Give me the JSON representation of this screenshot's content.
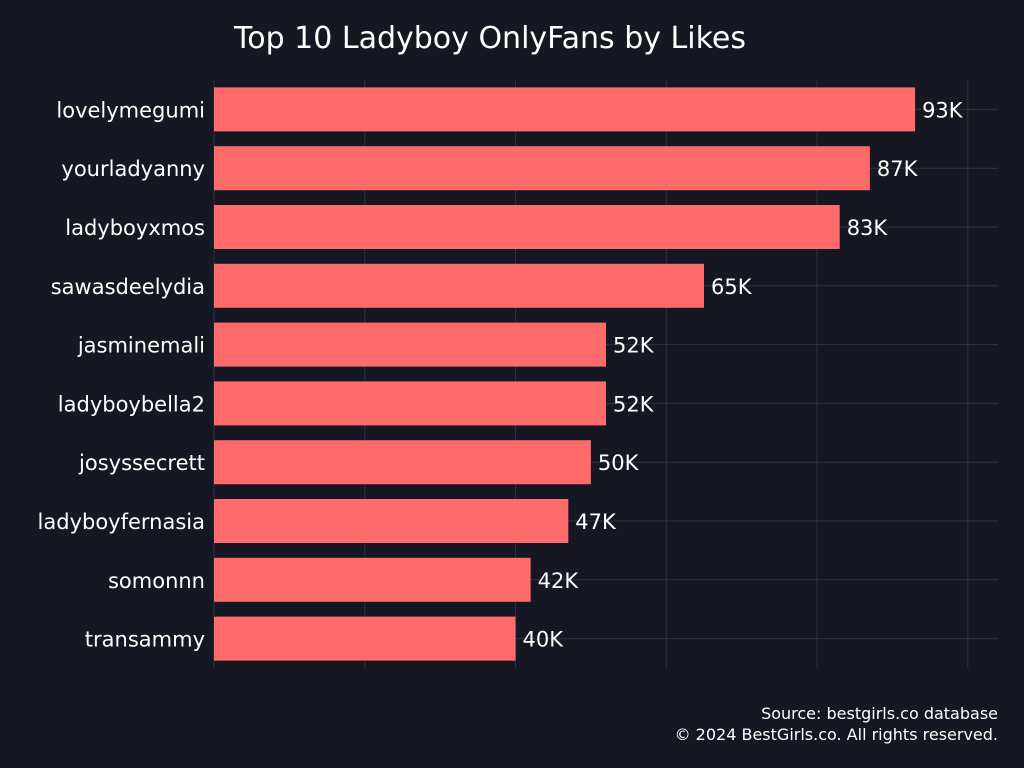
{
  "chart_data": {
    "type": "bar",
    "orientation": "horizontal",
    "title": "Top 10 Ladyboy OnlyFans by Likes",
    "categories": [
      "lovelymegumi",
      "yourladyanny",
      "ladyboyxmos",
      "sawasdeelydia",
      "jasminemali",
      "ladyboybella2",
      "josyssecrett",
      "ladyboyfernasia",
      "somonnn",
      "transammy"
    ],
    "values": [
      93000,
      87000,
      83000,
      65000,
      52000,
      52000,
      50000,
      47000,
      42000,
      40000
    ],
    "data_labels": [
      "93K",
      "87K",
      "83K",
      "65K",
      "52K",
      "52K",
      "50K",
      "47K",
      "42K",
      "40K"
    ],
    "xlim": [
      0,
      104000
    ],
    "x_gridlines": [
      0,
      20000,
      40000,
      60000,
      80000,
      100000
    ],
    "grid": true,
    "xlabel": "",
    "ylabel": ""
  },
  "footer": {
    "source": "Source: bestgirls.co database",
    "copyright": "© 2024 BestGirls.co. All rights reserved."
  },
  "colors": {
    "background": "#151722",
    "bar": "#ff6b6b",
    "grid": "#2e3242",
    "text": "#ffffff"
  }
}
